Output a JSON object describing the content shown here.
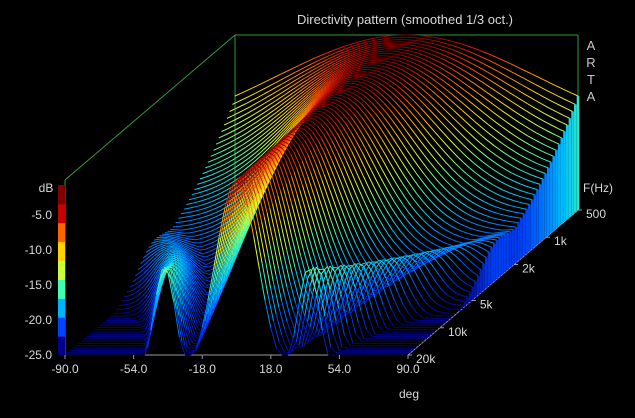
{
  "chart_data": {
    "type": "waterfall-3d",
    "title": "Directivity pattern (smoothed 1/3 oct.)",
    "brand": "ARTA",
    "x_axis": {
      "label": "deg",
      "range": [
        -90,
        90
      ],
      "ticks": [
        "-90.0",
        "-54.0",
        "-18.0",
        "18.0",
        "54.0",
        "90.0"
      ]
    },
    "z_axis": {
      "label": "dB",
      "range": [
        -25,
        0
      ],
      "ticks": [
        "-5.0",
        "-10.0",
        "-15.0",
        "-20.0",
        "-25.0"
      ]
    },
    "depth_axis": {
      "label": "F(Hz)",
      "scale": "log",
      "range": [
        500,
        20000
      ],
      "ticks": [
        "500",
        "1k",
        "2k",
        "5k",
        "10k",
        "20k"
      ]
    },
    "colorbar": [
      "#00008c",
      "#0044ff",
      "#00b4ff",
      "#40ffb0",
      "#c8ff3c",
      "#ffd200",
      "#ff6400",
      "#c80000",
      "#800000"
    ],
    "series_count": 64,
    "profile": {
      "note_levels_db": "level vs angle per frequency",
      "low_freq_width_deg": 110,
      "high_freq_width_deg": 18
    }
  }
}
